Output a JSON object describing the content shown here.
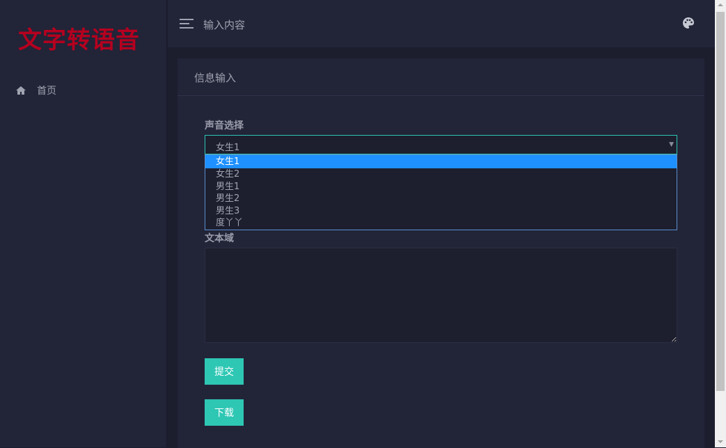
{
  "app": {
    "logo": "文字转语音"
  },
  "sidebar": {
    "items": [
      {
        "label": "首页",
        "icon": "home-icon"
      }
    ]
  },
  "topbar": {
    "title": "输入内容",
    "menu_icon": "menu-icon",
    "theme_icon": "palette-icon"
  },
  "card": {
    "title": "信息输入",
    "voice_label": "声音选择",
    "voice_selected": "女生1",
    "voice_options": [
      "女生1",
      "女生2",
      "男生1",
      "男生2",
      "男生3",
      "度丫丫"
    ],
    "textarea_label": "文本域",
    "textarea_value": "",
    "submit_label": "提交",
    "download_label": "下载"
  },
  "colors": {
    "accent": "#2ec7b4",
    "logo": "#b5001f",
    "highlight": "#1e90ff"
  }
}
